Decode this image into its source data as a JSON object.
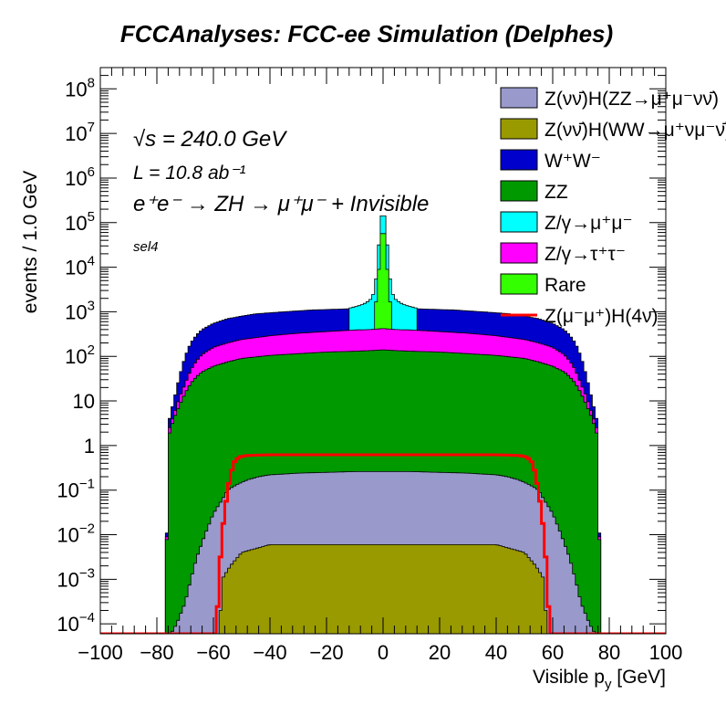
{
  "title": "FCCAnalyses: FCC-ee Simulation (Delphes)",
  "annotations": {
    "energy": "√s = 240.0 GeV",
    "lumi": "L = 10.8 ab⁻¹",
    "process": "e⁺e⁻ → ZH → μ⁺μ⁻ + Invisible",
    "selection": "sel4"
  },
  "chart_data": {
    "type": "histogram",
    "title": "FCCAnalyses: FCC-ee Simulation (Delphes)",
    "xlabel": "Visible p_y [GeV]",
    "ylabel": "events / 1.0 GeV",
    "xlim": [
      -100,
      100
    ],
    "ylim": [
      6e-05,
      300000000
    ],
    "yscale": "log",
    "bin_width": 1.0,
    "x_ticks": [
      -100,
      -80,
      -60,
      -40,
      -20,
      0,
      20,
      40,
      60,
      80,
      100
    ],
    "x_tick_labels": [
      "−100",
      "−80",
      "−60",
      "−40",
      "−20",
      "0",
      "20",
      "40",
      "60",
      "80",
      "100"
    ],
    "y_ticks": [
      0.0001,
      0.001,
      0.01,
      0.1,
      1,
      10,
      100,
      1000,
      10000,
      100000,
      1000000,
      10000000,
      100000000
    ],
    "y_tick_labels": [
      {
        "base": "10",
        "exp": "−4"
      },
      {
        "base": "10",
        "exp": "−3"
      },
      {
        "base": "10",
        "exp": "−2"
      },
      {
        "base": "10",
        "exp": "−1"
      },
      {
        "base": "1",
        "exp": ""
      },
      {
        "base": "10",
        "exp": ""
      },
      {
        "base": "10",
        "exp": "2"
      },
      {
        "base": "10",
        "exp": "3"
      },
      {
        "base": "10",
        "exp": "4"
      },
      {
        "base": "10",
        "exp": "5"
      },
      {
        "base": "10",
        "exp": "6"
      },
      {
        "base": "10",
        "exp": "7"
      },
      {
        "base": "10",
        "exp": "8"
      }
    ],
    "stack_bands": [
      {
        "name": "Z(νν̄)H(WW→μ⁺νμ⁻ν̄)",
        "color": "#999900",
        "points": [
          [
            -60,
            4e-05
          ],
          [
            -58,
            4e-05
          ],
          [
            -57,
            0.001
          ],
          [
            -54,
            0.002
          ],
          [
            -50,
            0.004
          ],
          [
            -40,
            0.006
          ],
          [
            -30,
            0.006
          ],
          [
            -20,
            0.006
          ],
          [
            -10,
            0.006
          ],
          [
            0,
            0.006
          ],
          [
            10,
            0.006
          ],
          [
            20,
            0.006
          ],
          [
            30,
            0.006
          ],
          [
            40,
            0.006
          ],
          [
            50,
            0.004
          ],
          [
            54,
            0.002
          ],
          [
            57,
            0.001
          ],
          [
            58,
            4e-05
          ],
          [
            60,
            4e-05
          ]
        ]
      },
      {
        "name": "Z(νν̄)H(ZZ→μ⁺μ⁻νν̄)",
        "color": "#9999cc",
        "points": [
          [
            -77,
            4e-05
          ],
          [
            -75,
            6e-05
          ],
          [
            -73,
            0.0001
          ],
          [
            -70,
            0.0003
          ],
          [
            -68,
            0.001
          ],
          [
            -66,
            0.003
          ],
          [
            -63,
            0.01
          ],
          [
            -60,
            0.03
          ],
          [
            -57,
            0.06
          ],
          [
            -55,
            0.1
          ],
          [
            -52,
            0.13
          ],
          [
            -48,
            0.17
          ],
          [
            -44,
            0.2
          ],
          [
            -40,
            0.22
          ],
          [
            -30,
            0.24
          ],
          [
            -20,
            0.25
          ],
          [
            -10,
            0.26
          ],
          [
            0,
            0.26
          ],
          [
            10,
            0.26
          ],
          [
            20,
            0.25
          ],
          [
            30,
            0.24
          ],
          [
            40,
            0.22
          ],
          [
            44,
            0.2
          ],
          [
            48,
            0.17
          ],
          [
            52,
            0.13
          ],
          [
            55,
            0.1
          ],
          [
            57,
            0.06
          ],
          [
            60,
            0.03
          ],
          [
            63,
            0.01
          ],
          [
            66,
            0.003
          ],
          [
            68,
            0.001
          ],
          [
            70,
            0.0003
          ],
          [
            73,
            0.0001
          ],
          [
            75,
            6e-05
          ],
          [
            77,
            4e-05
          ]
        ]
      },
      {
        "name": "ZZ",
        "color": "#009900",
        "points": [
          [
            -78,
            4e-05
          ],
          [
            -77,
            4e-05
          ],
          [
            -76,
            1.5
          ],
          [
            -74,
            4
          ],
          [
            -72,
            8
          ],
          [
            -70,
            15
          ],
          [
            -68,
            25
          ],
          [
            -66,
            35
          ],
          [
            -64,
            45
          ],
          [
            -60,
            60
          ],
          [
            -55,
            75
          ],
          [
            -50,
            90
          ],
          [
            -40,
            105
          ],
          [
            -30,
            115
          ],
          [
            -20,
            125
          ],
          [
            -10,
            130
          ],
          [
            -4,
            135
          ],
          [
            0,
            140
          ],
          [
            4,
            135
          ],
          [
            10,
            130
          ],
          [
            20,
            125
          ],
          [
            30,
            115
          ],
          [
            40,
            105
          ],
          [
            50,
            90
          ],
          [
            55,
            75
          ],
          [
            60,
            60
          ],
          [
            64,
            45
          ],
          [
            66,
            35
          ],
          [
            68,
            25
          ],
          [
            70,
            15
          ],
          [
            72,
            8
          ],
          [
            74,
            4
          ],
          [
            76,
            1.5
          ],
          [
            77,
            4e-05
          ],
          [
            78,
            4e-05
          ]
        ]
      },
      {
        "name": "Z/γ→τ⁺τ⁻",
        "color": "#ff00ff",
        "points": [
          [
            -78,
            4e-05
          ],
          [
            -77,
            4e-05
          ],
          [
            -76,
            2
          ],
          [
            -72,
            12
          ],
          [
            -68,
            50
          ],
          [
            -66,
            80
          ],
          [
            -64,
            110
          ],
          [
            -60,
            160
          ],
          [
            -55,
            200
          ],
          [
            -50,
            240
          ],
          [
            -40,
            290
          ],
          [
            -30,
            330
          ],
          [
            -20,
            360
          ],
          [
            -10,
            390
          ],
          [
            -4,
            400
          ],
          [
            0,
            420
          ],
          [
            4,
            400
          ],
          [
            10,
            390
          ],
          [
            20,
            360
          ],
          [
            30,
            330
          ],
          [
            40,
            290
          ],
          [
            50,
            240
          ],
          [
            55,
            200
          ],
          [
            60,
            160
          ],
          [
            64,
            110
          ],
          [
            66,
            80
          ],
          [
            68,
            50
          ],
          [
            72,
            12
          ],
          [
            76,
            2
          ],
          [
            77,
            4e-05
          ],
          [
            78,
            4e-05
          ]
        ]
      },
      {
        "name": "W⁺W⁻",
        "color": "#0000cc",
        "points": [
          [
            -78,
            4e-05
          ],
          [
            -77,
            4e-05
          ],
          [
            -76,
            3
          ],
          [
            -74,
            10
          ],
          [
            -72,
            35
          ],
          [
            -70,
            100
          ],
          [
            -68,
            200
          ],
          [
            -66,
            300
          ],
          [
            -64,
            400
          ],
          [
            -60,
            550
          ],
          [
            -55,
            700
          ],
          [
            -50,
            800
          ],
          [
            -45,
            900
          ],
          [
            -40,
            950
          ],
          [
            -35,
            1000
          ],
          [
            -30,
            1050
          ],
          [
            -25,
            1100
          ],
          [
            -20,
            1120
          ],
          [
            -15,
            1150
          ],
          [
            -10,
            1180
          ],
          [
            -6,
            1200
          ],
          [
            -4,
            1300
          ],
          [
            0,
            1400
          ],
          [
            4,
            1300
          ],
          [
            6,
            1200
          ],
          [
            10,
            1180
          ],
          [
            15,
            1150
          ],
          [
            20,
            1120
          ],
          [
            25,
            1100
          ],
          [
            30,
            1050
          ],
          [
            35,
            1000
          ],
          [
            40,
            950
          ],
          [
            45,
            900
          ],
          [
            50,
            800
          ],
          [
            55,
            700
          ],
          [
            60,
            550
          ],
          [
            64,
            400
          ],
          [
            66,
            300
          ],
          [
            68,
            200
          ],
          [
            70,
            100
          ],
          [
            72,
            35
          ],
          [
            74,
            10
          ],
          [
            76,
            3
          ],
          [
            77,
            4e-05
          ],
          [
            78,
            4e-05
          ]
        ]
      },
      {
        "name": "Z/γ→μ⁺μ⁻",
        "color": "#00ffff",
        "points": [
          [
            -12,
            1200
          ],
          [
            -10,
            1300
          ],
          [
            -8,
            1400
          ],
          [
            -6,
            1600
          ],
          [
            -4,
            2000
          ],
          [
            -3,
            3000
          ],
          [
            -2,
            10000
          ],
          [
            -1,
            100000
          ],
          [
            0,
            200000
          ],
          [
            1,
            100000
          ],
          [
            2,
            10000
          ],
          [
            3,
            3000
          ],
          [
            4,
            2000
          ],
          [
            6,
            1600
          ],
          [
            8,
            1400
          ],
          [
            10,
            1300
          ],
          [
            12,
            1200
          ]
        ]
      },
      {
        "name": "Rare",
        "color": "#33ff00",
        "points": [
          [
            -3,
            1400
          ],
          [
            -2,
            2000
          ],
          [
            -1,
            40000
          ],
          [
            0,
            80000
          ],
          [
            1,
            40000
          ],
          [
            2,
            2000
          ],
          [
            3,
            1400
          ]
        ]
      }
    ],
    "signal": {
      "name": "Z(μ⁻μ⁺)H(4ν)",
      "color": "#ff0000",
      "points": [
        [
          -100,
          6e-05
        ],
        [
          -59,
          6e-05
        ],
        [
          -58,
          0.001
        ],
        [
          -57,
          0.01
        ],
        [
          -55,
          0.1
        ],
        [
          -53,
          0.4
        ],
        [
          -51,
          0.55
        ],
        [
          -48,
          0.6
        ],
        [
          -40,
          0.62
        ],
        [
          -20,
          0.62
        ],
        [
          0,
          0.62
        ],
        [
          20,
          0.62
        ],
        [
          40,
          0.62
        ],
        [
          48,
          0.6
        ],
        [
          51,
          0.55
        ],
        [
          53,
          0.4
        ],
        [
          55,
          0.1
        ],
        [
          57,
          0.01
        ],
        [
          58,
          0.001
        ],
        [
          59,
          6e-05
        ],
        [
          100,
          6e-05
        ]
      ]
    },
    "legend": [
      {
        "label": "Z(νν̄)H(ZZ→μ⁺μ⁻νν̄)",
        "color": "#9999cc",
        "style": "box"
      },
      {
        "label": "Z(νν̄)H(WW→μ⁺νμ⁻ν̄)",
        "color": "#999900",
        "style": "box"
      },
      {
        "label": "W⁺W⁻",
        "color": "#0000cc",
        "style": "box"
      },
      {
        "label": "ZZ",
        "color": "#009900",
        "style": "box"
      },
      {
        "label": "Z/γ→μ⁺μ⁻",
        "color": "#00ffff",
        "style": "box"
      },
      {
        "label": "Z/γ→τ⁺τ⁻",
        "color": "#ff00ff",
        "style": "box"
      },
      {
        "label": "Rare",
        "color": "#33ff00",
        "style": "box"
      },
      {
        "label": "Z(μ⁻μ⁺)H(4ν)",
        "color": "#ff0000",
        "style": "line"
      }
    ],
    "legend_position": "top-right",
    "grid": false
  }
}
